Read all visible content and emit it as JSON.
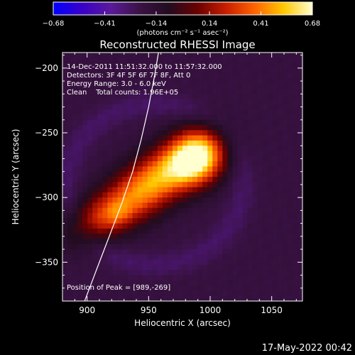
{
  "chart_data": {
    "type": "heatmap",
    "title": "Reconstructed RHESSI Image",
    "xlabel": "Heliocentric X (arcsec)",
    "ylabel": "Heliocentric Y (arcsec)",
    "xlim": [
      880,
      1075
    ],
    "ylim": [
      -380,
      -188
    ],
    "x_ticks": [
      900,
      950,
      1000,
      1050
    ],
    "x_tick_labels": [
      "900",
      "950",
      "1000",
      "1050"
    ],
    "y_ticks": [
      -200,
      -250,
      -300,
      -350
    ],
    "y_tick_labels": [
      "−200",
      "−250",
      "−300",
      "−350"
    ],
    "colorbar": {
      "range": [
        -0.68,
        0.68
      ],
      "ticks": [
        -0.68,
        -0.41,
        -0.14,
        0.14,
        0.41,
        0.68
      ],
      "tick_labels": [
        "−0.68",
        "−0.41",
        "−0.14",
        "0.14",
        "0.41",
        "0.68"
      ],
      "unit_label": "(photons cm⁻² s⁻¹ asec⁻²)",
      "colors": [
        "#0000ff",
        "#3a00c8",
        "#5a1a9a",
        "#3a1245",
        "#220c20",
        "#6a0000",
        "#c81e00",
        "#ff6400",
        "#ffc800",
        "#ffffd0"
      ]
    },
    "annotations": [
      "14-Dec-2011 11:51:32.000 to 11:57:32.000",
      "Detectors: 3F 4F 5F 6F 7F 8F, Att 0",
      "Energy Range: 3.0 - 6.0 keV",
      "Clean    Total counts: 1.96E+05"
    ],
    "peak_label": "Position of Peak = [989,-269]",
    "peak_position": [
      989,
      -269
    ],
    "background_level": -0.2,
    "sources": [
      {
        "x": 989,
        "y": -269,
        "sx": 16,
        "sy": 14,
        "amp": 0.88
      },
      {
        "x": 962,
        "y": -282,
        "sx": 22,
        "sy": 14,
        "amp": 0.5
      },
      {
        "x": 935,
        "y": -302,
        "sx": 22,
        "sy": 14,
        "amp": 0.42
      },
      {
        "x": 905,
        "y": -318,
        "sx": 18,
        "sy": 12,
        "amp": 0.28
      },
      {
        "x": 925,
        "y": -313,
        "sx": 8,
        "sy": 7,
        "amp": 0.15
      }
    ],
    "limb_curve": [
      [
        898,
        -380
      ],
      [
        908,
        -355
      ],
      [
        918,
        -330
      ],
      [
        928,
        -305
      ],
      [
        937,
        -280
      ],
      [
        944,
        -255
      ],
      [
        950,
        -230
      ],
      [
        955,
        -205
      ],
      [
        958,
        -188
      ]
    ]
  },
  "timestamp": "17-May-2022 00:42"
}
